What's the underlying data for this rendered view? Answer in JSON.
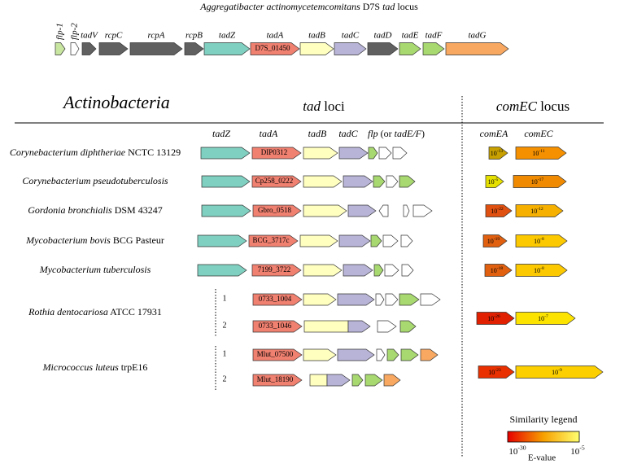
{
  "title": {
    "species": "Aggregatibacter actinomycetemcomitans",
    "strain": "D7S",
    "locus": "tad",
    "suffix": "locus"
  },
  "reference_genes": [
    {
      "name": "flp-1"
    },
    {
      "name": "flp-2"
    },
    {
      "name": "tadV"
    },
    {
      "name": "rcpC"
    },
    {
      "name": "rcpA"
    },
    {
      "name": "rcpB"
    },
    {
      "name": "tadZ"
    },
    {
      "name": "tadA",
      "locus_tag": "D7S_01450"
    },
    {
      "name": "tadB"
    },
    {
      "name": "tadC"
    },
    {
      "name": "tadD"
    },
    {
      "name": "tadE"
    },
    {
      "name": "tadF"
    },
    {
      "name": "tadG"
    }
  ],
  "headers": {
    "group": "Actinobacteria",
    "tad": "tad",
    "tad_suffix": "loci",
    "comec": "comEC",
    "comec_suffix": "locus"
  },
  "columns": [
    "tadZ",
    "tadA",
    "tadB",
    "tadC"
  ],
  "flp_column": {
    "flp": "flp",
    "open": "(or",
    "tadef": "tadE/F",
    "close": ")"
  },
  "comec_columns": [
    "comEA",
    "comEC"
  ],
  "evalue_base": "10",
  "organisms": [
    {
      "species": "Corynebacterium diphtheriae",
      "strain": "NCTC 13129",
      "loci": [
        {
          "tag": "DIP0312"
        }
      ],
      "comEA": "-13",
      "comEC": "-11"
    },
    {
      "species": "Corynebacterium pseudotuberculosis",
      "loci": [
        {
          "tag": "Cp258_0222"
        }
      ],
      "comEA": "-5",
      "comEC": "-17"
    },
    {
      "species": "Gordonia bronchialis",
      "strain": "DSM 43247",
      "loci": [
        {
          "tag": "Gbro_0518"
        }
      ],
      "comEA": "-22",
      "comEC": "-12"
    },
    {
      "species": "Mycobacterium bovis",
      "strain": "BCG Pasteur",
      "loci": [
        {
          "tag": "BCG_3717c"
        }
      ],
      "comEA": "-19",
      "comEC": "-8"
    },
    {
      "species": "Mycobacterium tuberculosis",
      "loci": [
        {
          "tag": "7199_3722"
        }
      ],
      "comEA": "-18",
      "comEC": "-8"
    },
    {
      "species": "Rothia dentocariosa",
      "strain": "ATCC 17931",
      "loci": [
        {
          "index": "1",
          "tag": "0733_1004"
        },
        {
          "index": "2",
          "tag": "0733_1046"
        }
      ],
      "comEA": "-26",
      "comEC": "-7"
    },
    {
      "species": "Micrococcus luteus",
      "strain": "trpE16",
      "loci": [
        {
          "index": "1",
          "tag": "Mlut_07500"
        },
        {
          "index": "2",
          "tag": "Mlut_18190"
        }
      ],
      "comEA": "-23",
      "comEC": "-9"
    }
  ],
  "legend": {
    "title": "Similarity legend",
    "min_exp": "-30",
    "max_exp": "-5",
    "label": "E-value"
  }
}
